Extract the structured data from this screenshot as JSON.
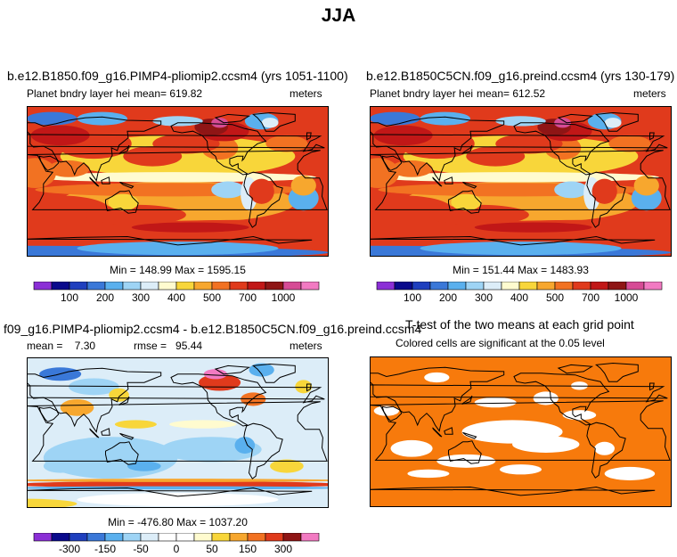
{
  "title": "JJA",
  "panels": [
    {
      "title": "b.e12.B1850.f09_g16.PIMP4-pliomip2.ccsm4 (yrs 1051-1100)",
      "variable": "Planet bndry layer hei",
      "mean_label": "mean=",
      "mean": "619.82",
      "units": "meters",
      "min_label": "Min =",
      "min": "148.99",
      "max_label": "Max =",
      "max": "1595.15"
    },
    {
      "title": "b.e12.B1850C5CN.f09_g16.preind.ccsm4 (yrs 130-179)",
      "variable": "Planet bndry layer hei",
      "mean_label": "mean=",
      "mean": "612.52",
      "units": "meters",
      "min_label": "Min =",
      "min": "151.44",
      "max_label": "Max =",
      "max": "1483.93"
    },
    {
      "title": "f09_g16.PIMP4-pliomip2.ccsm4 - b.e12.B1850C5CN.f09_g16.preind.ccsm4",
      "mean_label": "mean =",
      "mean": "7.30",
      "rmse_label": "rmse =",
      "rmse": "95.44",
      "units": "meters",
      "min_label": "Min =",
      "min": "-476.80",
      "max_label": "Max =",
      "max": "1037.20"
    },
    {
      "title": "T-test of the two means at each grid point",
      "subtitle": "Colored cells are significant at the 0.05 level"
    }
  ],
  "chart_data": [
    {
      "type": "heatmap",
      "title": "b.e12.B1850.f09_g16.PIMP4-pliomip2.ccsm4 (yrs 1051-1100)",
      "units": "meters",
      "mean": 619.82,
      "min": 148.99,
      "max": 1595.15,
      "colorbar_ticks": [
        100,
        200,
        300,
        400,
        500,
        700,
        1000
      ]
    },
    {
      "type": "heatmap",
      "title": "b.e12.B1850C5CN.f09_g16.preind.ccsm4 (yrs 130-179)",
      "units": "meters",
      "mean": 612.52,
      "min": 151.44,
      "max": 1483.93,
      "colorbar_ticks": [
        100,
        200,
        300,
        400,
        500,
        700,
        1000
      ]
    },
    {
      "type": "heatmap",
      "title": "f09_g16.PIMP4-pliomip2.ccsm4 - b.e12.B1850C5CN.f09_g16.preind.ccsm4",
      "units": "meters",
      "mean": 7.3,
      "rmse": 95.44,
      "min": -476.8,
      "max": 1037.2,
      "colorbar_ticks": [
        -300,
        -150,
        -50,
        0,
        50,
        150,
        300
      ]
    },
    {
      "type": "heatmap",
      "title": "T-test of the two means at each grid point",
      "subtitle": "Colored cells are significant at the 0.05 level",
      "significant_color": "#f77a0c"
    }
  ],
  "colorbars": {
    "abs": {
      "colors": [
        "#8b2fd6",
        "#0a0a8c",
        "#1f3fbe",
        "#3a78d8",
        "#5ab0ee",
        "#9ed4f5",
        "#dcedf8",
        "#fffbcf",
        "#f8d63a",
        "#f7a72e",
        "#f27222",
        "#e03a1c",
        "#c11717",
        "#8f1515",
        "#d64b95",
        "#f27ac2"
      ],
      "ticks": [
        "100",
        "200",
        "300",
        "400",
        "500",
        "700",
        "1000"
      ]
    },
    "diff": {
      "colors": [
        "#8b2fd6",
        "#0a0a8c",
        "#1f3fbe",
        "#3a78d8",
        "#5ab0ee",
        "#9ed4f5",
        "#dcedf8",
        "#ffffff",
        "#ffffff",
        "#fffbcf",
        "#f8d63a",
        "#f7a72e",
        "#f27222",
        "#e03a1c",
        "#8f1515",
        "#f27ac2"
      ],
      "ticks": [
        "-300",
        "-150",
        "-50",
        "0",
        "50",
        "150",
        "300"
      ]
    }
  }
}
